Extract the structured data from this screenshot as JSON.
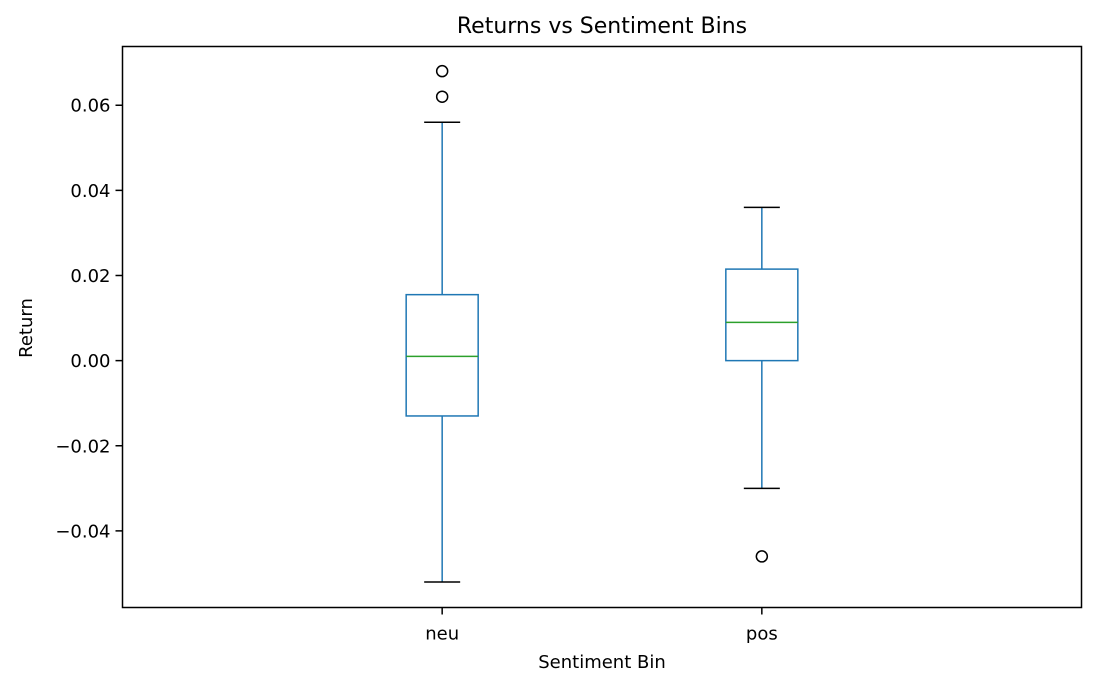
{
  "chart_data": {
    "type": "box",
    "title": "Returns vs Sentiment Bins",
    "xlabel": "Sentiment Bin",
    "ylabel": "Return",
    "ylim": [
      -0.058,
      0.0738
    ],
    "yticks": [
      -0.04,
      -0.02,
      0.0,
      0.02,
      0.04,
      0.06
    ],
    "ytick_labels": [
      "−0.04",
      "−0.02",
      "0.00",
      "0.02",
      "0.04",
      "0.06"
    ],
    "categories": [
      "neu",
      "pos"
    ],
    "boxes": [
      {
        "category": "neu",
        "whisker_low": -0.052,
        "q1": -0.013,
        "median": 0.001,
        "q3": 0.0155,
        "whisker_high": 0.056,
        "outliers": [
          0.062,
          0.068
        ]
      },
      {
        "category": "pos",
        "whisker_low": -0.03,
        "q1": 0.0,
        "median": 0.009,
        "q3": 0.0215,
        "whisker_high": 0.036,
        "outliers": [
          -0.046
        ]
      }
    ],
    "grid": false,
    "colors": {
      "box": "#1f77b4",
      "median": "#2ca02c",
      "whisker": "#1f77b4",
      "cap": "#000000",
      "outlier": "#000000",
      "axes": "#000000"
    }
  }
}
